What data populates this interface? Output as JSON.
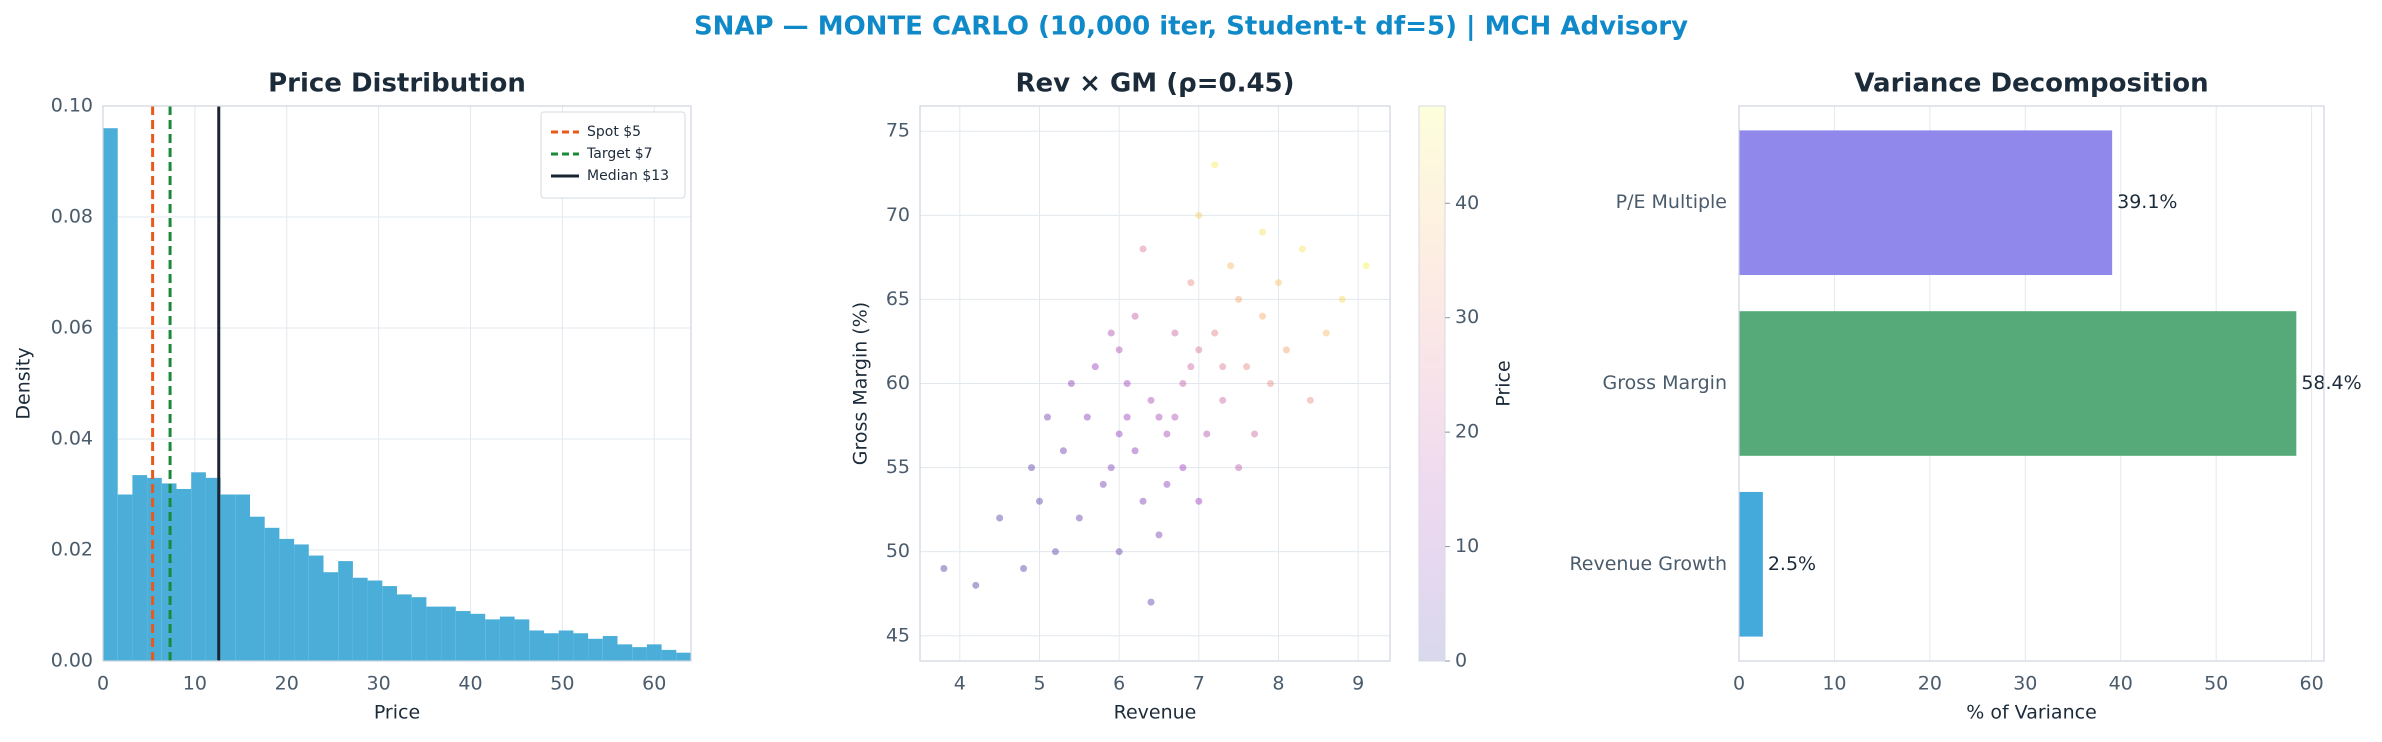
{
  "title": "SNAP — MONTE CARLO (10,000 iter, Student-t df=5) | MCH Advisory",
  "chart_data": [
    {
      "type": "histogram",
      "title": "Price Distribution",
      "xlabel": "Price",
      "ylabel": "Density",
      "color": "#4aaed9",
      "grid": true,
      "bins": [
        0,
        1.6,
        3.2,
        4.8,
        6.4,
        8,
        9.6,
        11.2,
        12.8,
        14.4,
        16,
        17.6,
        19.2,
        20.8,
        22.4,
        24,
        25.6,
        27.2,
        28.8,
        30.4,
        32,
        33.6,
        35.2,
        36.8,
        38.4,
        40,
        41.6,
        43.2,
        44.8,
        46.4,
        48,
        49.6,
        51.2,
        52.8,
        54.4,
        56,
        57.6,
        59.2,
        60.8,
        62.4,
        64
      ],
      "values": [
        0.096,
        0.03,
        0.0335,
        0.033,
        0.032,
        0.031,
        0.034,
        0.033,
        0.03,
        0.03,
        0.026,
        0.024,
        0.022,
        0.021,
        0.019,
        0.016,
        0.018,
        0.015,
        0.0145,
        0.0135,
        0.012,
        0.0115,
        0.0098,
        0.0098,
        0.009,
        0.0085,
        0.0075,
        0.008,
        0.0075,
        0.0055,
        0.005,
        0.0055,
        0.005,
        0.004,
        0.0045,
        0.003,
        0.0025,
        0.003,
        0.002,
        0.0015
      ],
      "xlim": [
        0,
        64
      ],
      "xticks": [
        0,
        10,
        20,
        30,
        40,
        50,
        60
      ],
      "ylim": [
        0,
        0.1
      ],
      "yticks": [
        {
          "value": 0,
          "label": "0.00"
        },
        {
          "value": 0.02,
          "label": "0.02"
        },
        {
          "value": 0.04,
          "label": "0.04"
        },
        {
          "value": 0.06,
          "label": "0.06"
        },
        {
          "value": 0.08,
          "label": "0.08"
        },
        {
          "value": 0.1,
          "label": "0.10"
        }
      ],
      "legend": "upper right",
      "reference_lines": [
        {
          "name": "Spot $5",
          "x": 5.4,
          "color": "#e8591a",
          "style": "dashed"
        },
        {
          "name": "Target $7",
          "x": 7.3,
          "color": "#1a8a3a",
          "style": "dashed"
        },
        {
          "name": "Median $13",
          "x": 12.6,
          "color": "#1a2433",
          "style": "solid"
        }
      ]
    },
    {
      "type": "scatter",
      "title": "Rev × GM (ρ=0.45)",
      "xlabel": "Revenue",
      "ylabel": "Gross Margin (%)",
      "grid": true,
      "colormap": "plasma",
      "alpha": 0.35,
      "colorbar_label": "Price",
      "clim": [
        0,
        48.5
      ],
      "cticks": [
        0,
        10,
        20,
        30,
        40
      ],
      "x": [
        6.5,
        6.2,
        7.0,
        5.8,
        7.5,
        6.8,
        6.0,
        7.2,
        5.5,
        8.0,
        6.4,
        6.9,
        5.9,
        7.8,
        6.6,
        6.1,
        7.3,
        5.2,
        8.3,
        6.3,
        6.7,
        7.1,
        5.6,
        7.6,
        4.8,
        8.6,
        6.0,
        7.4,
        5.3,
        6.8,
        7.9,
        6.2,
        5.0,
        7.0,
        6.5,
        8.1,
        4.5,
        5.7,
        7.7,
        6.9,
        4.2,
        9.1,
        5.4,
        6.4,
        7.2,
        5.1,
        6.6,
        7.5,
        8.4,
        6.3,
        4.9,
        6.0,
        7.8,
        5.9,
        6.7,
        7.0,
        8.8,
        3.8,
        6.1,
        7.3
      ],
      "values": [
        58,
        56,
        62,
        54,
        65,
        60,
        57,
        63,
        52,
        66,
        59,
        61,
        55,
        64,
        57,
        60,
        59,
        50,
        68,
        53,
        63,
        57,
        58,
        61,
        49,
        63,
        62,
        67,
        56,
        55,
        60,
        64,
        53,
        70,
        51,
        62,
        52,
        61,
        57,
        66,
        48,
        67,
        60,
        47,
        73,
        58,
        54,
        55,
        59,
        68,
        55,
        50,
        69,
        63,
        58,
        53,
        65,
        49,
        58,
        61
      ],
      "color_values": [
        14,
        10,
        25,
        7,
        35,
        20,
        11,
        28,
        5,
        40,
        15,
        22,
        8,
        36,
        14,
        13,
        22,
        3,
        45,
        8,
        21,
        17,
        9,
        29,
        1,
        38,
        16,
        38,
        6,
        12,
        30,
        20,
        3,
        42,
        7,
        34,
        2,
        12,
        22,
        30,
        0.5,
        47,
        9,
        4,
        46,
        6,
        10,
        19,
        30,
        26,
        3,
        5,
        44,
        16,
        16,
        12,
        43,
        0.5,
        12,
        26
      ],
      "xlim": [
        3.5,
        9.4
      ],
      "xticks": [
        4,
        5,
        6,
        7,
        8,
        9
      ],
      "ylim": [
        43.5,
        76.5
      ],
      "yticks": [
        45,
        50,
        55,
        60,
        65,
        70,
        75
      ]
    },
    {
      "type": "bar",
      "orientation": "horizontal",
      "title": "Variance Decomposition",
      "xlabel": "% of Variance",
      "grid": true,
      "categories": [
        "Revenue Growth",
        "Gross Margin",
        "P/E Multiple"
      ],
      "values": [
        2.5,
        58.4,
        39.1
      ],
      "value_labels": [
        "2.5%",
        "58.4%",
        "39.1%"
      ],
      "colors": [
        "#33a3d8",
        "#48a36e",
        "#887ee9"
      ],
      "xlim": [
        0,
        61.3
      ],
      "xticks": [
        0,
        10,
        20,
        30,
        40,
        50,
        60
      ]
    }
  ]
}
